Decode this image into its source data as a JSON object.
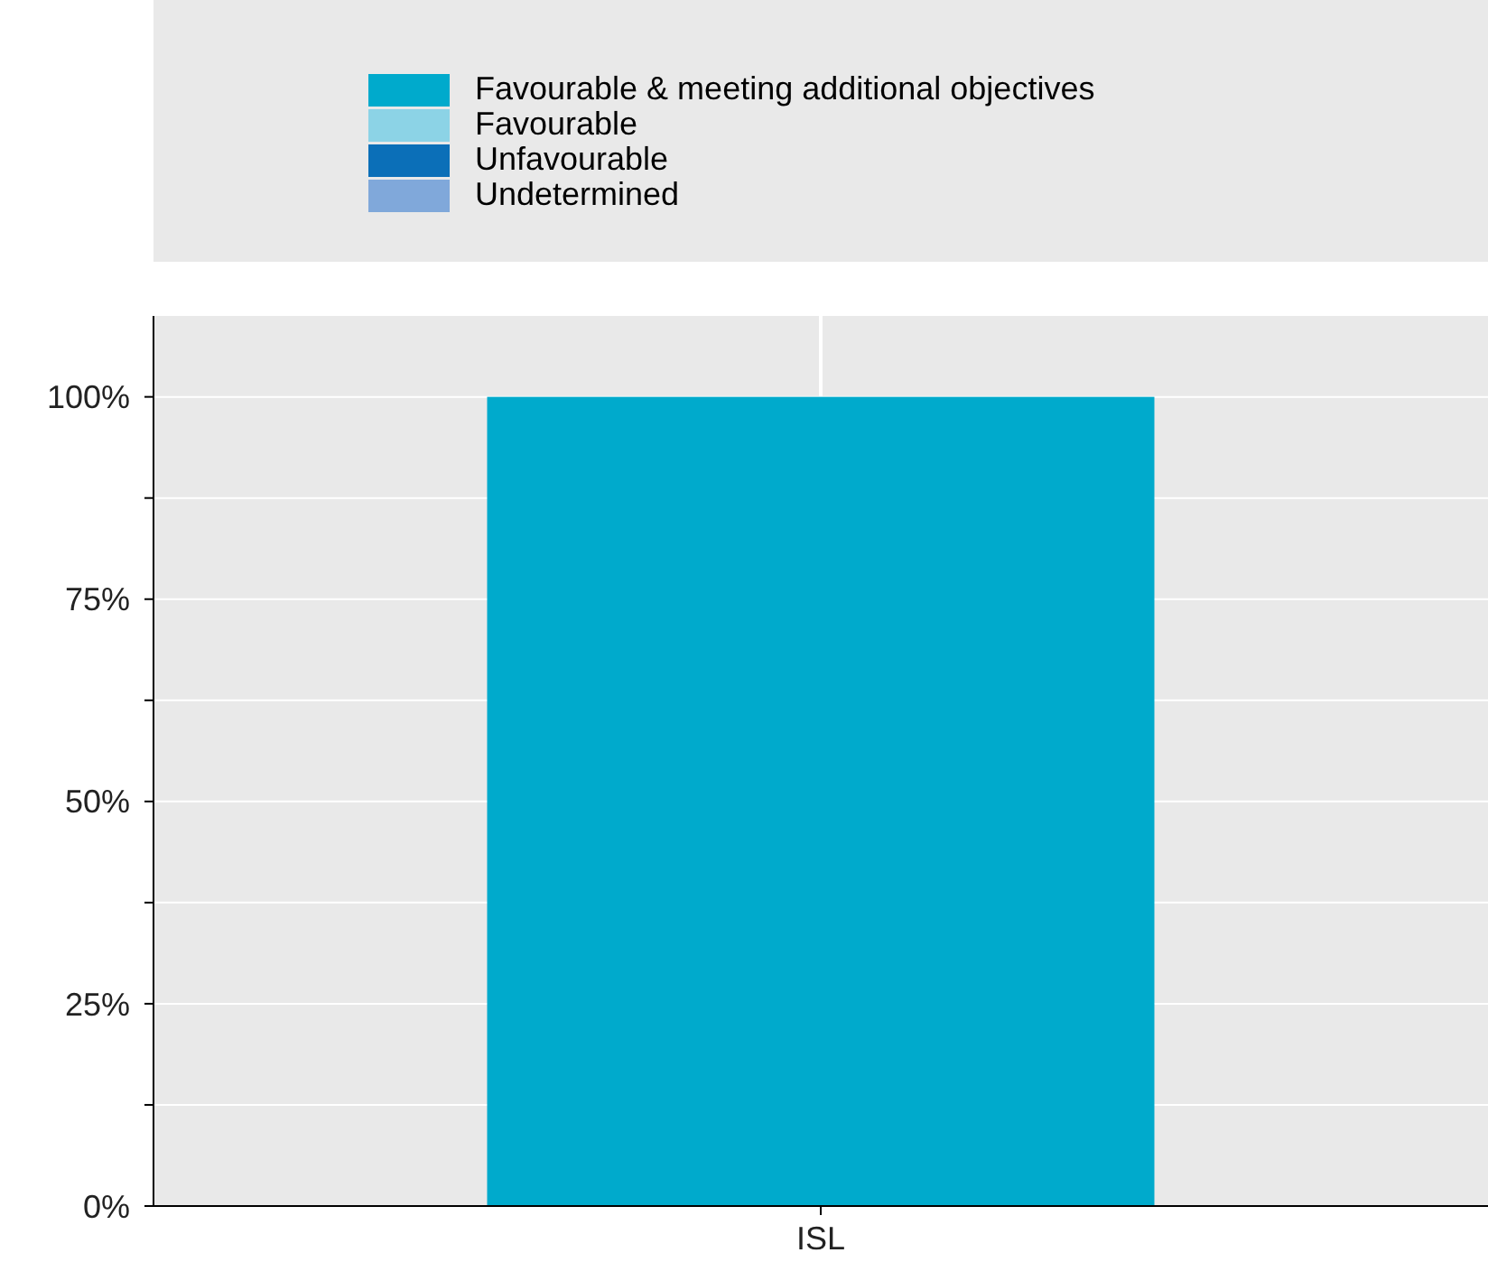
{
  "chart_data": {
    "type": "bar",
    "categories": [
      "ISL"
    ],
    "series": [
      {
        "name": "Favourable & meeting additional objectives",
        "color": "#00aacc",
        "values": [
          100
        ]
      },
      {
        "name": "Favourable",
        "color": "#8cd3e6",
        "values": [
          0
        ]
      },
      {
        "name": "Unfavourable",
        "color": "#0b6fb8",
        "values": [
          0
        ]
      },
      {
        "name": "Undetermined",
        "color": "#80a8da",
        "values": [
          0
        ]
      }
    ],
    "ylim": [
      0,
      110
    ],
    "yticks": [
      {
        "value": 0,
        "label": "0%"
      },
      {
        "value": 12.5,
        "label": null
      },
      {
        "value": 25,
        "label": "25%"
      },
      {
        "value": 37.5,
        "label": null
      },
      {
        "value": 50,
        "label": "50%"
      },
      {
        "value": 62.5,
        "label": null
      },
      {
        "value": 75,
        "label": "75%"
      },
      {
        "value": 87.5,
        "label": null
      },
      {
        "value": 100,
        "label": "100%"
      }
    ],
    "grid": "y",
    "ref_lines": [
      {
        "axis": "x",
        "value": "ISL",
        "color": "#ffffff"
      }
    ],
    "legend": "top"
  }
}
